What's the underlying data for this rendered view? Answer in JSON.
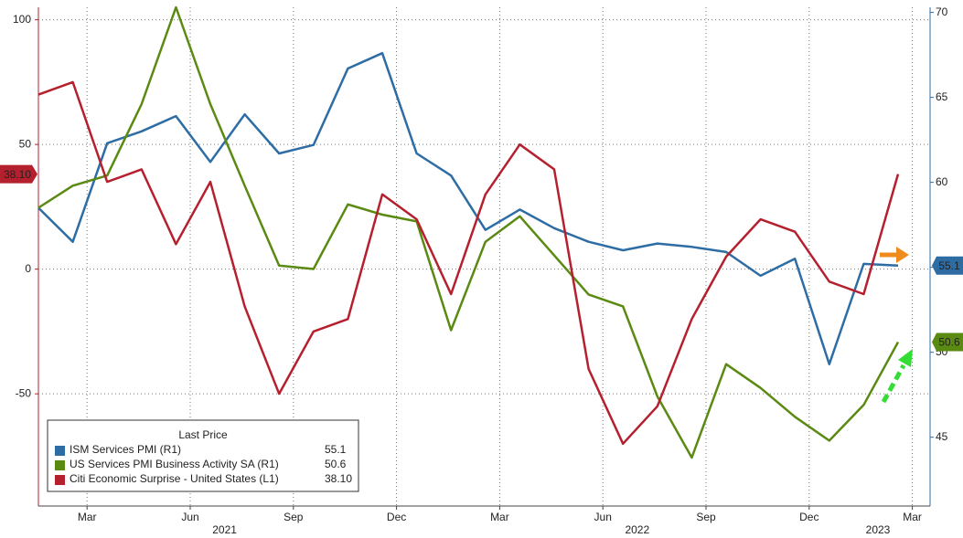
{
  "chart_data": {
    "type": "line",
    "legend_title": "Last Price",
    "x": [
      "2021-01",
      "2021-02",
      "2021-03",
      "2021-04",
      "2021-05",
      "2021-06",
      "2021-07",
      "2021-08",
      "2021-09",
      "2021-10",
      "2021-11",
      "2021-12",
      "2022-01",
      "2022-02",
      "2022-03",
      "2022-04",
      "2022-05",
      "2022-06",
      "2022-07",
      "2022-08",
      "2022-09",
      "2022-10",
      "2022-11",
      "2022-12",
      "2023-01",
      "2023-02"
    ],
    "xticks": [
      {
        "value": "2021-03",
        "label": "Mar"
      },
      {
        "value": "2021-06",
        "label": "Jun"
      },
      {
        "value": "2021-09",
        "label": "Sep"
      },
      {
        "value": "2021-12",
        "label": "Dec"
      },
      {
        "value": "2022-03",
        "label": "Mar"
      },
      {
        "value": "2022-06",
        "label": "Jun"
      },
      {
        "value": "2022-09",
        "label": "Sep"
      },
      {
        "value": "2022-12",
        "label": "Dec"
      },
      {
        "value": "2023-03",
        "label": "Mar"
      }
    ],
    "year_ticks": [
      {
        "value": "2021-07",
        "label": "2021"
      },
      {
        "value": "2022-07",
        "label": "2022"
      },
      {
        "value": "2023-02",
        "label": "2023"
      }
    ],
    "ylim": [
      -95,
      105
    ],
    "yticks": [
      -50,
      0,
      50,
      100
    ],
    "y2lim": [
      40.95,
      70.3
    ],
    "y2ticks": [
      45,
      50,
      55,
      60,
      65,
      70
    ],
    "grid": true,
    "legend": "lower left",
    "series": [
      {
        "name": "ISM Services PMI  (R1)",
        "color": "#2e6da4",
        "axis": "y2",
        "values": [
          58.5,
          56.5,
          62.3,
          63.0,
          63.9,
          61.2,
          64.0,
          61.7,
          62.2,
          66.7,
          67.6,
          61.7,
          60.4,
          57.2,
          58.4,
          57.3,
          56.5,
          56.0,
          56.4,
          56.2,
          55.9,
          54.5,
          55.5,
          49.3,
          55.2,
          55.1
        ],
        "value_labels": [
          null,
          null,
          null,
          null,
          null,
          null,
          null,
          null,
          null,
          null,
          null,
          null,
          null,
          null,
          null,
          null,
          null,
          null,
          null,
          null,
          null,
          null,
          null,
          null,
          null,
          "55.1"
        ]
      },
      {
        "name": "US Services PMI Business Activity SA  (R1)",
        "color": "#5a8a12",
        "axis": "y2",
        "values": [
          58.5,
          59.8,
          60.4,
          64.6,
          70.3,
          64.6,
          59.8,
          55.1,
          54.9,
          58.7,
          58.1,
          57.7,
          51.3,
          56.5,
          58.0,
          55.7,
          53.4,
          52.7,
          47.4,
          43.8,
          49.3,
          47.9,
          46.2,
          44.8,
          46.9,
          50.6
        ],
        "value_labels": [
          null,
          null,
          null,
          null,
          null,
          null,
          null,
          null,
          null,
          null,
          null,
          null,
          null,
          null,
          null,
          null,
          null,
          null,
          null,
          null,
          null,
          null,
          null,
          null,
          null,
          "50.6"
        ]
      },
      {
        "name": "Citi Economic Surprise - United States  (L1)",
        "color": "#b5202e",
        "axis": "y",
        "values": [
          70,
          75,
          35,
          40,
          10,
          35,
          -15,
          -50,
          -25,
          -20,
          30,
          20,
          -10,
          30,
          50,
          40,
          -40,
          -70,
          -55,
          -20,
          5,
          20,
          15,
          -5,
          -10,
          38.1
        ],
        "value_labels": [
          null,
          null,
          null,
          null,
          null,
          null,
          null,
          null,
          null,
          null,
          null,
          null,
          null,
          null,
          null,
          null,
          null,
          null,
          null,
          null,
          null,
          null,
          null,
          null,
          null,
          "38.10"
        ]
      }
    ]
  }
}
